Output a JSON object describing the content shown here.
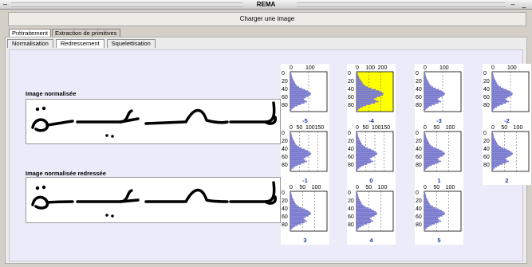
{
  "window": {
    "title": "REMA",
    "sysmenu_icon": "dash",
    "minimize_label": "–",
    "close_label": "_"
  },
  "toolbar": {
    "load_button_label": "Charger une image"
  },
  "top_tabs": [
    {
      "label": "Prétraitement",
      "active": true
    },
    {
      "label": "Extraction de primitives",
      "active": false
    }
  ],
  "sub_tabs": [
    {
      "label": "Normalisation",
      "active": false
    },
    {
      "label": "Redressement",
      "active": true
    },
    {
      "label": "Squelettisation",
      "active": false
    }
  ],
  "images": {
    "normalized_label": "Image normalisée",
    "straightened_label": "Image normalisée redressée"
  },
  "histograms": [
    {
      "angle": "-5",
      "x_ticks": [
        "0",
        "100"
      ],
      "y_ticks": [
        "0",
        "20",
        "40",
        "60",
        "80"
      ],
      "highlighted": false
    },
    {
      "angle": "-4",
      "x_ticks": [
        "0",
        "100",
        "200"
      ],
      "y_ticks": [
        "0",
        "20",
        "40",
        "60",
        "80"
      ],
      "highlighted": true
    },
    {
      "angle": "-3",
      "x_ticks": [
        "0",
        "100"
      ],
      "y_ticks": [
        "0",
        "20",
        "40",
        "60",
        "80"
      ],
      "highlighted": false
    },
    {
      "angle": "-2",
      "x_ticks": [
        "0",
        "100"
      ],
      "y_ticks": [
        "0",
        "20",
        "40",
        "60",
        "80"
      ],
      "highlighted": false
    },
    {
      "angle": "-1",
      "x_ticks": [
        "0",
        "50",
        "100",
        "150"
      ],
      "y_ticks": [
        "0",
        "20",
        "40",
        "60",
        "80"
      ],
      "highlighted": false
    },
    {
      "angle": "0",
      "x_ticks": [
        "0",
        "50",
        "100",
        "150"
      ],
      "y_ticks": [
        "0",
        "20",
        "40",
        "60",
        "80"
      ],
      "highlighted": false
    },
    {
      "angle": "1",
      "x_ticks": [
        "0",
        "50",
        "100"
      ],
      "y_ticks": [
        "0",
        "20",
        "40",
        "60",
        "80"
      ],
      "highlighted": false
    },
    {
      "angle": "2",
      "x_ticks": [
        "0",
        "50",
        "100"
      ],
      "y_ticks": [
        "0",
        "20",
        "40",
        "60",
        "80"
      ],
      "highlighted": false
    },
    {
      "angle": "3",
      "x_ticks": [
        "0",
        "50",
        "100"
      ],
      "y_ticks": [
        "0",
        "20",
        "40",
        "60",
        "80"
      ],
      "highlighted": false
    },
    {
      "angle": "4",
      "x_ticks": [
        "0",
        "50",
        "100"
      ],
      "y_ticks": [
        "0",
        "20",
        "40",
        "60",
        "80"
      ],
      "highlighted": false
    },
    {
      "angle": "5",
      "x_ticks": [
        "0",
        "50",
        "100"
      ],
      "y_ticks": [
        "0",
        "20",
        "40",
        "60",
        "80"
      ],
      "highlighted": false
    }
  ],
  "colors": {
    "histogram_fill": "#7b7bd0",
    "highlight": "#ffff00",
    "angle_label": "#1b3aa8",
    "panel_bg": "#ebebf9"
  }
}
